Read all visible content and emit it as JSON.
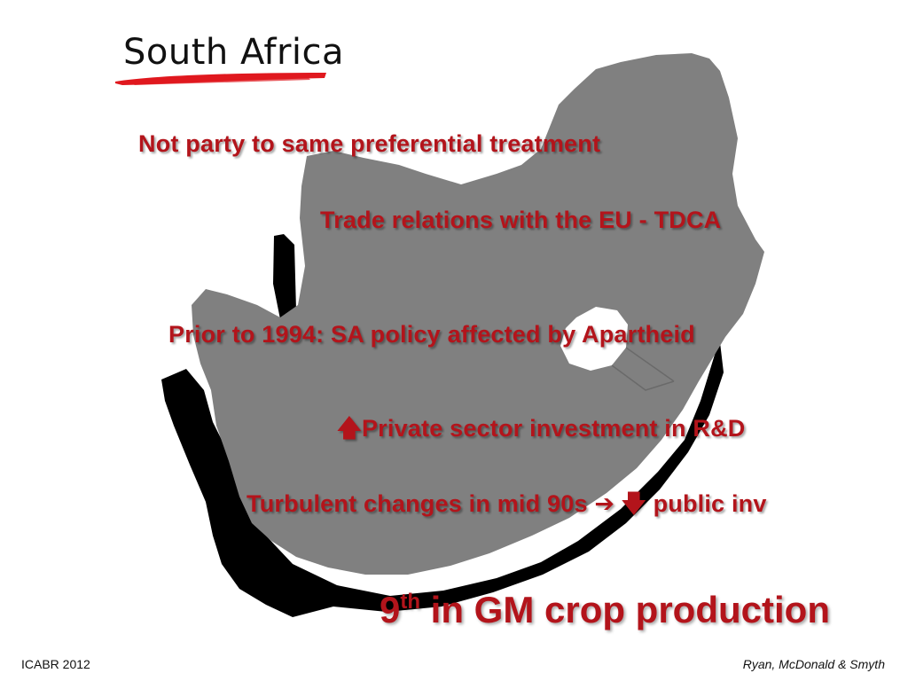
{
  "slide": {
    "title": "South Africa",
    "bullets": [
      {
        "text": "Not party to same preferential treatment"
      },
      {
        "text": "Trade relations with the EU - TDCA"
      },
      {
        "text": "Prior to 1994: SA policy affected by Apartheid"
      },
      {
        "prefix_icon": "up-arrow-icon",
        "prefix_glyph": "🡅",
        "text": "Private sector investment in R&D"
      },
      {
        "text": "Turbulent changes in mid 90s ",
        "arrow_right_icon": "right-arrow-icon",
        "arrow_right_glyph": "➔",
        "arrow_down_icon": "down-arrow-icon",
        "arrow_down_glyph": "🡇",
        "tail": " public inv"
      }
    ],
    "highlight": {
      "number": "9",
      "superscript": "th",
      "text": " in GM crop production"
    },
    "footer": {
      "left": "ICABR 2012",
      "right": "Ryan, McDonald & Smyth"
    }
  },
  "colors": {
    "accent": "#b3141b",
    "map_fill": "#808080",
    "map_shadow": "#000000",
    "brush": "#e0181e"
  }
}
